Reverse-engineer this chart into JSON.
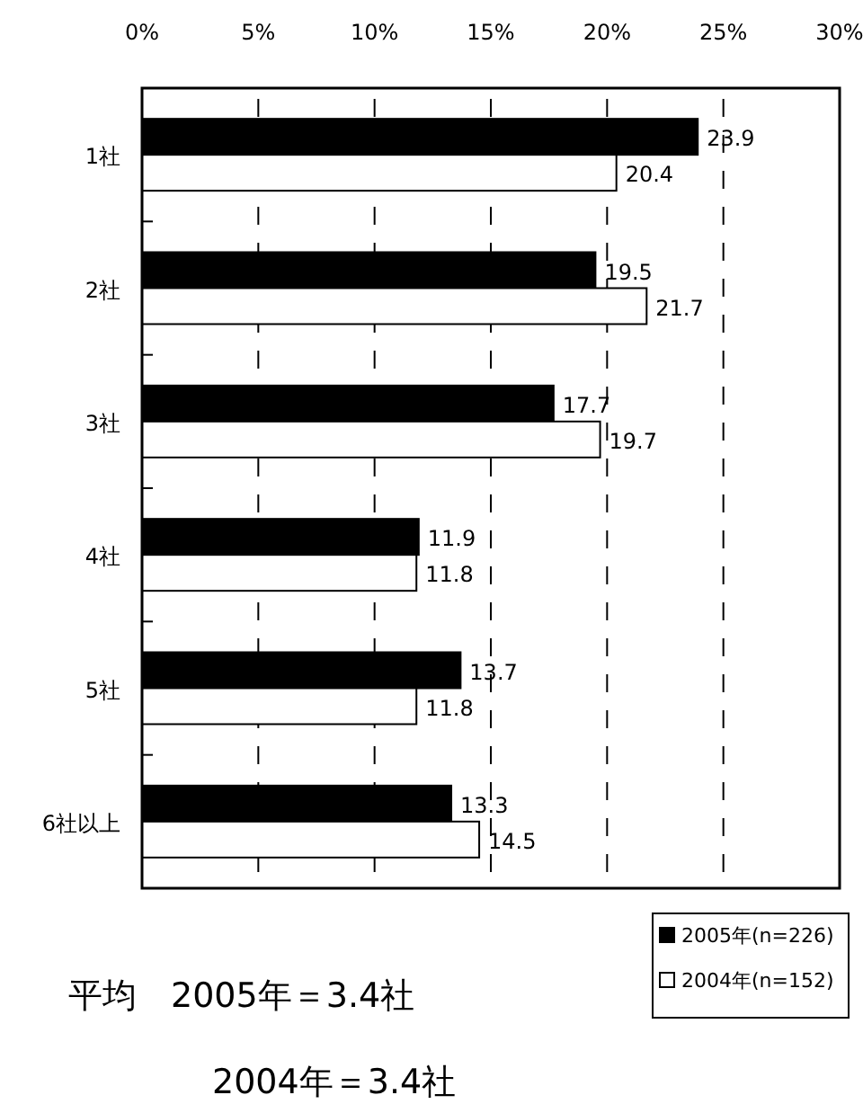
{
  "chart_data": {
    "type": "bar",
    "orientation": "horizontal",
    "categories": [
      "1社",
      "2社",
      "3社",
      "4社",
      "5社",
      "6社以上"
    ],
    "series": [
      {
        "name": "2005年(n=226)",
        "color": "#000000",
        "values": [
          23.9,
          19.5,
          17.7,
          11.9,
          13.7,
          13.3
        ]
      },
      {
        "name": "2004年(n=152)",
        "color": "#ffffff",
        "values": [
          20.4,
          21.7,
          19.7,
          11.8,
          11.8,
          14.5
        ]
      }
    ],
    "xlim": [
      0,
      30
    ],
    "xticks": [
      {
        "value": 0,
        "label": "0%"
      },
      {
        "value": 5,
        "label": "5%"
      },
      {
        "value": 10,
        "label": "10%"
      },
      {
        "value": 15,
        "label": "15%"
      },
      {
        "value": 20,
        "label": "20%"
      },
      {
        "value": 25,
        "label": "25%"
      },
      {
        "value": 30,
        "label": "30%"
      }
    ],
    "grid": "x",
    "data_labels": true,
    "legend": "bottom right",
    "annotations": [
      "平均　2005年＝3.4社",
      "2004年＝3.4社"
    ]
  }
}
